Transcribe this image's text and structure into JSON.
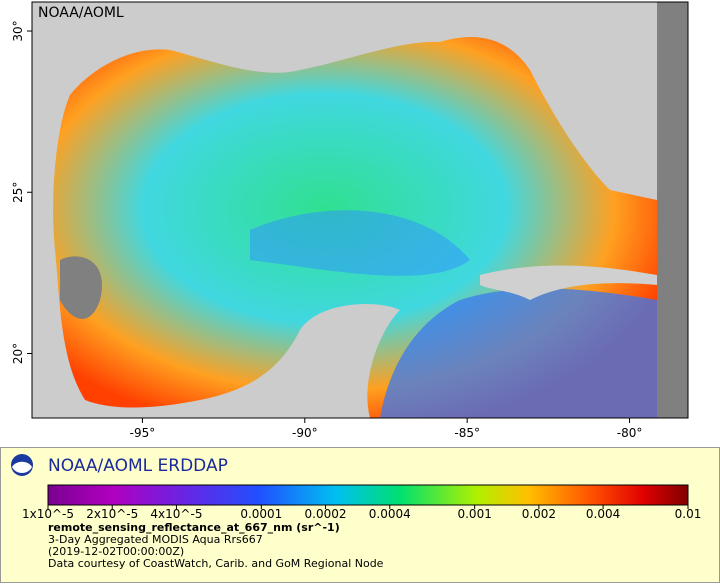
{
  "header": {
    "label": "NOAA/AOML"
  },
  "map": {
    "xlim": [
      -98.4,
      -78.2
    ],
    "ylim": [
      18,
      30.9
    ],
    "xticks": [
      {
        "value": -95,
        "label": "-95°"
      },
      {
        "value": -90,
        "label": "-90°"
      },
      {
        "value": -85,
        "label": "-85°"
      },
      {
        "value": -80,
        "label": "-80°"
      }
    ],
    "yticks": [
      {
        "value": 20,
        "label": "20°"
      },
      {
        "value": 25,
        "label": "25°"
      },
      {
        "value": 30,
        "label": "30°"
      }
    ]
  },
  "legend": {
    "title": "NOAA/AOML ERDDAP",
    "scale": "log",
    "lim": [
      1e-05,
      0.01
    ],
    "ticks": [
      {
        "value": 1e-05,
        "label": "1x10^-5"
      },
      {
        "value": 2e-05,
        "label": "2x10^-5"
      },
      {
        "value": 4e-05,
        "label": "4x10^-5"
      },
      0.0001,
      0.0002,
      0.0004,
      0.001,
      0.002,
      0.004,
      0.01
    ],
    "variable": "remote_sensing_reflectance_at_667_nm (sr^-1)",
    "lines": [
      "3-Day Aggregated MODIS Aqua Rrs667",
      "(2019-12-02T00:00:00Z)",
      "Data courtesy of CoastWatch, Carib. and GoM Regional Node"
    ]
  }
}
